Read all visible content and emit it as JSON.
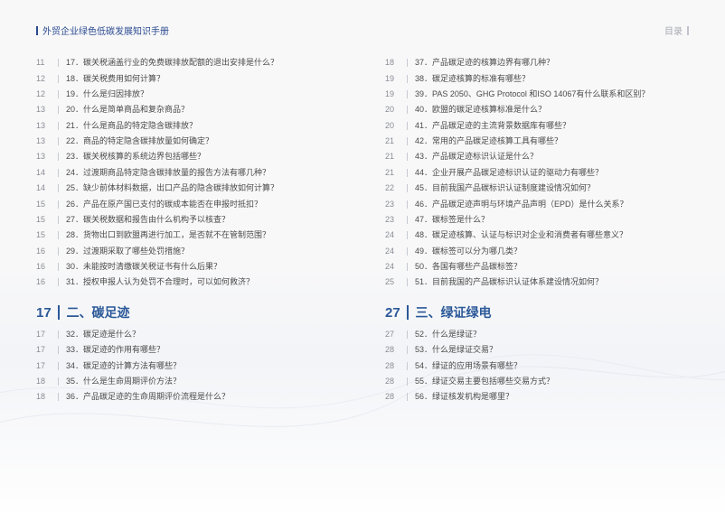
{
  "header": {
    "title": "外贸企业绿色低碳发展知识手册",
    "right_label": "目录"
  },
  "colors": {
    "brand_blue": "#2a5898",
    "text_gray": "#4a4a4a",
    "page_gray": "#8a8c94"
  },
  "left_column": {
    "block1": [
      {
        "page": "11",
        "text": "17．碳关税涵盖行业的免费碳排放配额的退出安排是什么？"
      },
      {
        "page": "12",
        "text": "18．碳关税费用如何计算？"
      },
      {
        "page": "12",
        "text": "19．什么是归因排放？"
      },
      {
        "page": "13",
        "text": "20．什么是简单商品和复杂商品？"
      },
      {
        "page": "13",
        "text": "21．什么是商品的特定隐含碳排放？"
      },
      {
        "page": "13",
        "text": "22．商品的特定隐含碳排放量如何确定？"
      },
      {
        "page": "13",
        "text": "23．碳关税核算的系统边界包括哪些？"
      },
      {
        "page": "14",
        "text": "24．过渡期商品特定隐含碳排放量的报告方法有哪几种？"
      },
      {
        "page": "14",
        "text": "25．缺少前体材料数据，出口产品的隐含碳排放如何计算？"
      },
      {
        "page": "15",
        "text": "26．产品在原产国已支付的碳成本能否在申报时抵扣？"
      },
      {
        "page": "15",
        "text": "27．碳关税数据和报告由什么机构予以核查？"
      },
      {
        "page": "15",
        "text": "28．货物出口到欧盟再进行加工，是否就不在管制范围？"
      },
      {
        "page": "16",
        "text": "29．过渡期采取了哪些处罚措施？"
      },
      {
        "page": "16",
        "text": "30．未能按时清缴碳关税证书有什么后果？"
      },
      {
        "page": "16",
        "text": "31．授权申报人认为处罚不合理时，可以如何救济？"
      }
    ],
    "section": {
      "page": "17",
      "title": "二、碳足迹"
    },
    "block2": [
      {
        "page": "17",
        "text": "32．碳足迹是什么？"
      },
      {
        "page": "17",
        "text": "33．碳足迹的作用有哪些？"
      },
      {
        "page": "17",
        "text": "34．碳足迹的计算方法有哪些？"
      },
      {
        "page": "18",
        "text": "35．什么是生命周期评价方法？"
      },
      {
        "page": "18",
        "text": "36．产品碳足迹的生命周期评价流程是什么？"
      }
    ]
  },
  "right_column": {
    "block1": [
      {
        "page": "18",
        "text": "37．产品碳足迹的核算边界有哪几种？"
      },
      {
        "page": "19",
        "text": "38．碳足迹核算的标准有哪些？"
      },
      {
        "page": "19",
        "text": "39．PAS 2050、GHG Protocol 和ISO 14067有什么联系和区别？"
      },
      {
        "page": "20",
        "text": "40．欧盟的碳足迹核算标准是什么？"
      },
      {
        "page": "20",
        "text": "41．产品碳足迹的主流背景数据库有哪些？"
      },
      {
        "page": "21",
        "text": "42．常用的产品碳足迹核算工具有哪些？"
      },
      {
        "page": "21",
        "text": "43．产品碳足迹标识认证是什么？"
      },
      {
        "page": "21",
        "text": "44．企业开展产品碳足迹标识认证的驱动力有哪些？"
      },
      {
        "page": "22",
        "text": "45．目前我国产品碳标识认证制度建设情况如何？"
      },
      {
        "page": "23",
        "text": "46．产品碳足迹声明与环境产品声明（EPD）是什么关系？"
      },
      {
        "page": "23",
        "text": "47．碳标签是什么？"
      },
      {
        "page": "24",
        "text": "48．碳足迹核算、认证与标识对企业和消费者有哪些意义？"
      },
      {
        "page": "24",
        "text": "49．碳标签可以分为哪几类？"
      },
      {
        "page": "24",
        "text": "50．各国有哪些产品碳标签？"
      },
      {
        "page": "25",
        "text": "51．目前我国的产品碳标识认证体系建设情况如何？"
      }
    ],
    "section": {
      "page": "27",
      "title": "三、绿证绿电"
    },
    "block2": [
      {
        "page": "27",
        "text": "52．什么是绿证？"
      },
      {
        "page": "28",
        "text": "53．什么是绿证交易？"
      },
      {
        "page": "28",
        "text": "54．绿证的应用场景有哪些？"
      },
      {
        "page": "28",
        "text": "55．绿证交易主要包括哪些交易方式？"
      },
      {
        "page": "28",
        "text": "56．绿证核发机构是哪里？"
      }
    ]
  }
}
